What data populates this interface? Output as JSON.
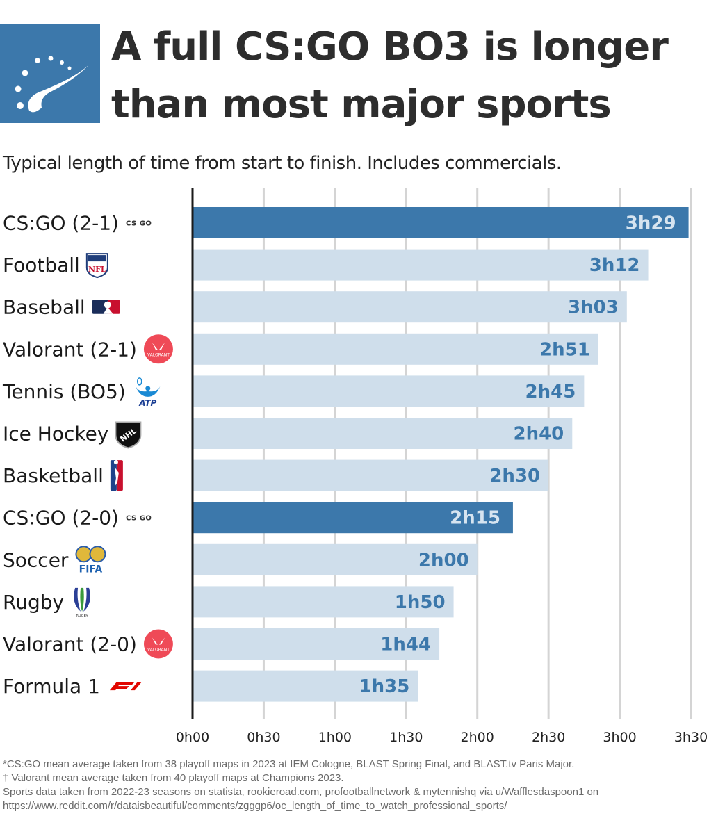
{
  "header": {
    "title_line1": "A full CS:GO BO3 is longer",
    "title_line2": "than most major sports",
    "subtitle": "Typical length of time from start to finish. Includes commercials.",
    "logo_icon": "speedometer-comet-icon"
  },
  "colors": {
    "highlight_bar": "#3c78ab",
    "normal_bar": "#cfdeeb",
    "highlight_text": "#d6e4f0",
    "normal_text": "#3c78ab",
    "axis": "#1a1a1a",
    "grid": "#d4d4d4",
    "logo_bg": "#3c78ab"
  },
  "chart_data": {
    "type": "bar",
    "orientation": "horizontal",
    "title": "A full CS:GO BO3 is longer than most major sports",
    "subtitle": "Typical length of time from start to finish. Includes commercials.",
    "xlabel": "",
    "ylabel": "",
    "unit": "minutes",
    "xlim": [
      0,
      210
    ],
    "grid": true,
    "legend": "none",
    "x_ticks": [
      0,
      30,
      60,
      90,
      120,
      150,
      180,
      210
    ],
    "x_tick_labels": [
      "0h00",
      "0h30",
      "1h00",
      "1h30",
      "2h00",
      "2h30",
      "3h00",
      "3h30"
    ],
    "categories": [
      "CS:GO (2-1)",
      "Football",
      "Baseball",
      "Valorant (2-1)",
      "Tennis (BO5)",
      "Ice Hockey",
      "Basketball",
      "CS:GO (2-0)",
      "Soccer",
      "Rugby",
      "Valorant (2-0)",
      "Formula 1"
    ],
    "values": [
      209,
      192,
      183,
      171,
      165,
      160,
      150,
      135,
      120,
      110,
      104,
      95
    ],
    "value_labels": [
      "3h29",
      "3h12",
      "3h03",
      "2h51",
      "2h45",
      "2h40",
      "2h30",
      "2h15",
      "2h00",
      "1h50",
      "1h44",
      "1h35"
    ],
    "highlighted": [
      true,
      false,
      false,
      false,
      false,
      false,
      false,
      true,
      false,
      false,
      false,
      false
    ],
    "category_icons": [
      "csgo-logo-icon",
      "nfl-logo-icon",
      "mlb-logo-icon",
      "valorant-logo-icon",
      "atp-logo-icon",
      "nhl-logo-icon",
      "nba-logo-icon",
      "csgo-logo-icon",
      "fifa-logo-icon",
      "world-rugby-logo-icon",
      "valorant-logo-icon",
      "f1-logo-icon"
    ]
  },
  "icon_text": {
    "csgo": "CS GO",
    "nfl": "NFL",
    "atp": "ATP",
    "fifa": "FIFA",
    "rugby": "RUGBY",
    "valorant": "VALORANT"
  },
  "footnotes": [
    "*CS:GO mean average taken from 38 playoff maps in 2023 at IEM Cologne, BLAST Spring Final, and BLAST.tv Paris Major.",
    "† Valorant mean average taken from 40 playoff maps at Champions 2023.",
    "Sports data taken from 2022-23 seasons on statista, rookieroad.com, profootballnetwork & mytennishq via u/Wafflesdaspoon1 on",
    "https://www.reddit.com/r/dataisbeautiful/comments/zgggp6/oc_length_of_time_to_watch_professional_sports/"
  ]
}
